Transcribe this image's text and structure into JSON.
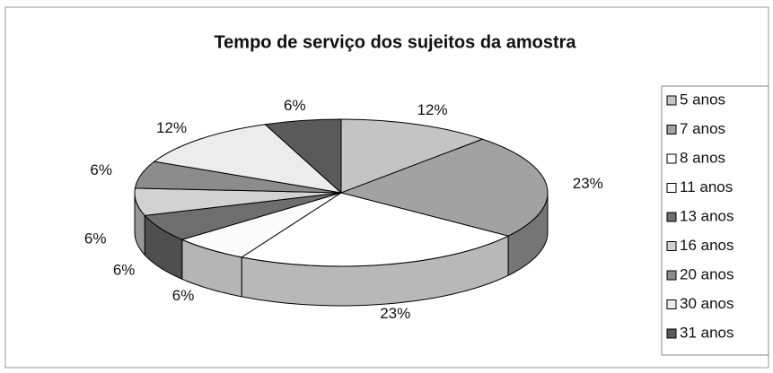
{
  "chart_data": {
    "type": "pie3d",
    "title": "Tempo de serviço dos sujeitos da amostra",
    "categories": [
      "5 anos",
      "7 anos",
      "8 anos",
      "11 anos",
      "13 anos",
      "16 anos",
      "20 anos",
      "30 anos",
      "31 anos"
    ],
    "values": [
      12,
      23,
      23,
      6,
      6,
      6,
      6,
      12,
      6
    ],
    "value_labels": [
      "12%",
      "23%",
      "23%",
      "6%",
      "6%",
      "6%",
      "6%",
      "12%",
      "6%"
    ],
    "colors": [
      "#c4c4c4",
      "#a2a2a2",
      "#ffffff",
      "#fbfbfb",
      "#6e6e6e",
      "#d2d2d2",
      "#8c8c8c",
      "#ececec",
      "#5a5a5a"
    ],
    "legend": "right"
  }
}
